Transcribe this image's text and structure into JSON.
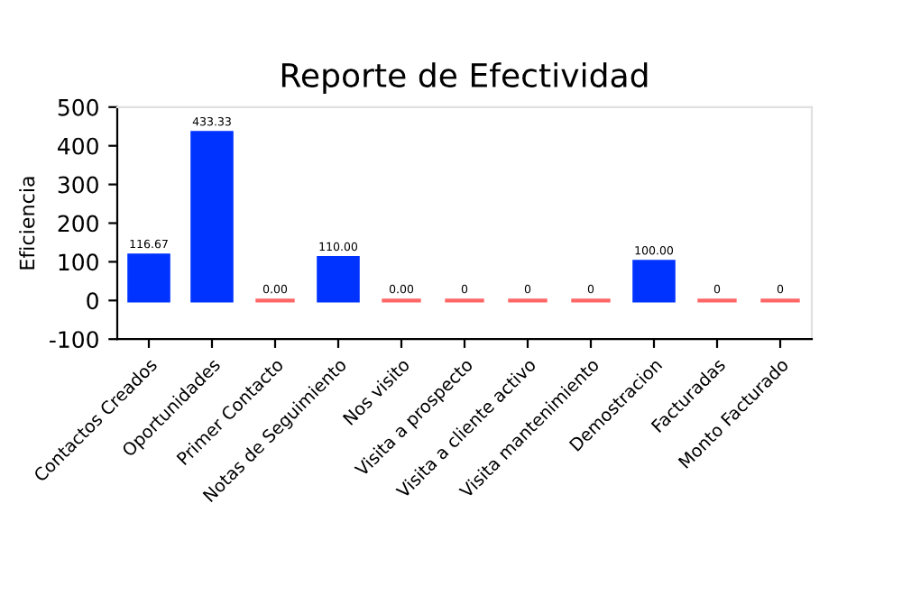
{
  "chart_data": {
    "type": "bar",
    "title": "Reporte de Efectividad",
    "ylabel": "Eficiencia",
    "categories": [
      "Contactos Creados",
      "Oportunidades",
      "Primer Contacto",
      "Notas de Seguimiento",
      "Nos visito",
      "Visita a prospecto",
      "Visita a cliente activo",
      "Visita mantenimiento",
      "Demostracion",
      "Facturadas",
      "Monto Facturado"
    ],
    "values": [
      116.67,
      433.33,
      0,
      110,
      0,
      0,
      0,
      0,
      100,
      0,
      0
    ],
    "value_labels": [
      "116.67",
      "433.33",
      "0.00",
      "110.00",
      "0.00",
      "0",
      "0",
      "0",
      "100.00",
      "0",
      "0"
    ],
    "colors": [
      "#0033ff",
      "#0033ff",
      "#ff6666",
      "#0033ff",
      "#ff6666",
      "#ff6666",
      "#ff6666",
      "#ff6666",
      "#0033ff",
      "#ff6666",
      "#ff6666"
    ],
    "ylim": [
      -100,
      500
    ],
    "yticks": [
      -100,
      0,
      100,
      200,
      300,
      400,
      500
    ],
    "grid": false,
    "legend": false
  }
}
